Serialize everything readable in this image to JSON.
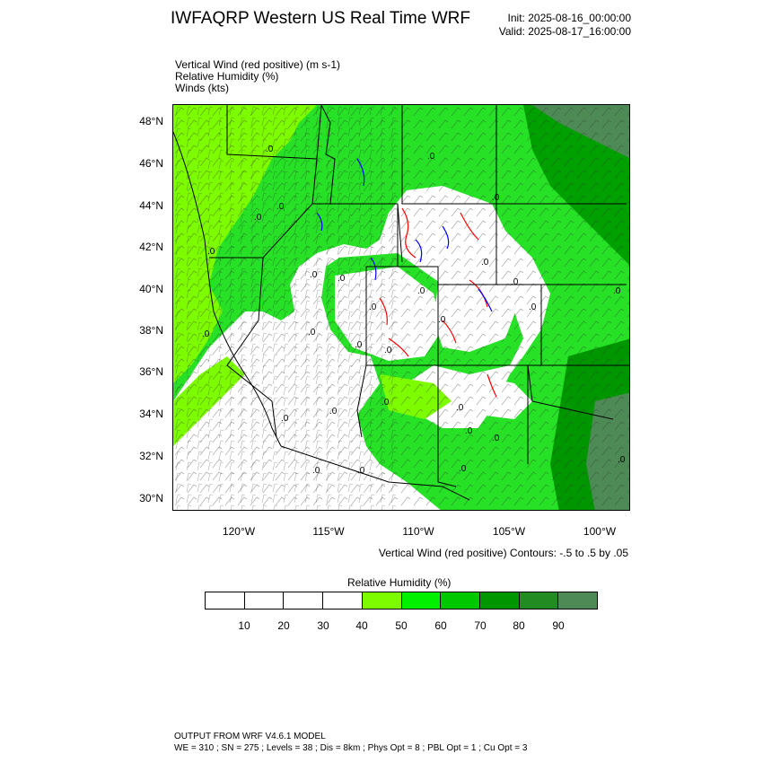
{
  "header": {
    "title": "IWFAQRP Western US Real Time WRF",
    "init": "Init: 2025-08-16_00:00:00",
    "valid": "Valid: 2025-08-17_16:00:00"
  },
  "fields": [
    "Vertical Wind (red positive)   (m s-1)",
    "Relative Humidity   (%)",
    "Winds   (kts)"
  ],
  "map": {
    "lat_labels": [
      "48°N",
      "46°N",
      "44°N",
      "42°N",
      "40°N",
      "38°N",
      "36°N",
      "34°N",
      "32°N",
      "30°N"
    ],
    "lon_labels": [
      "120°W",
      "115°W",
      "110°W",
      "105°W",
      "100°W"
    ],
    "contour_label": ".0",
    "colors": {
      "rh_40": "#7dfc00",
      "rh_50": "#00fa00",
      "rh_60": "#00d200",
      "rh_70": "#00a000",
      "rh_80": "#228b22",
      "rh_90": "#4d8a55",
      "updraft": "#ff0000",
      "downdraft": "#0000ff"
    }
  },
  "contours_note": "Vertical Wind (red positive) Contours: -.5 to .5 by .05",
  "colorbar": {
    "title": "Relative Humidity   (%)",
    "labels": [
      "10",
      "20",
      "30",
      "40",
      "50",
      "60",
      "70",
      "80",
      "90"
    ],
    "colors": [
      "#ffffff",
      "#ffffff",
      "#ffffff",
      "#ffffff",
      "#7dfc00",
      "#00f000",
      "#00c800",
      "#009600",
      "#228b22",
      "#4d8a55"
    ]
  },
  "footer": {
    "line1": "OUTPUT FROM WRF V4.6.1 MODEL",
    "line2": "WE = 310 ; SN = 275 ; Levels = 38 ; Dis = 8km ; Phys Opt = 8 ; PBL Opt = 1 ; Cu Opt = 3"
  }
}
